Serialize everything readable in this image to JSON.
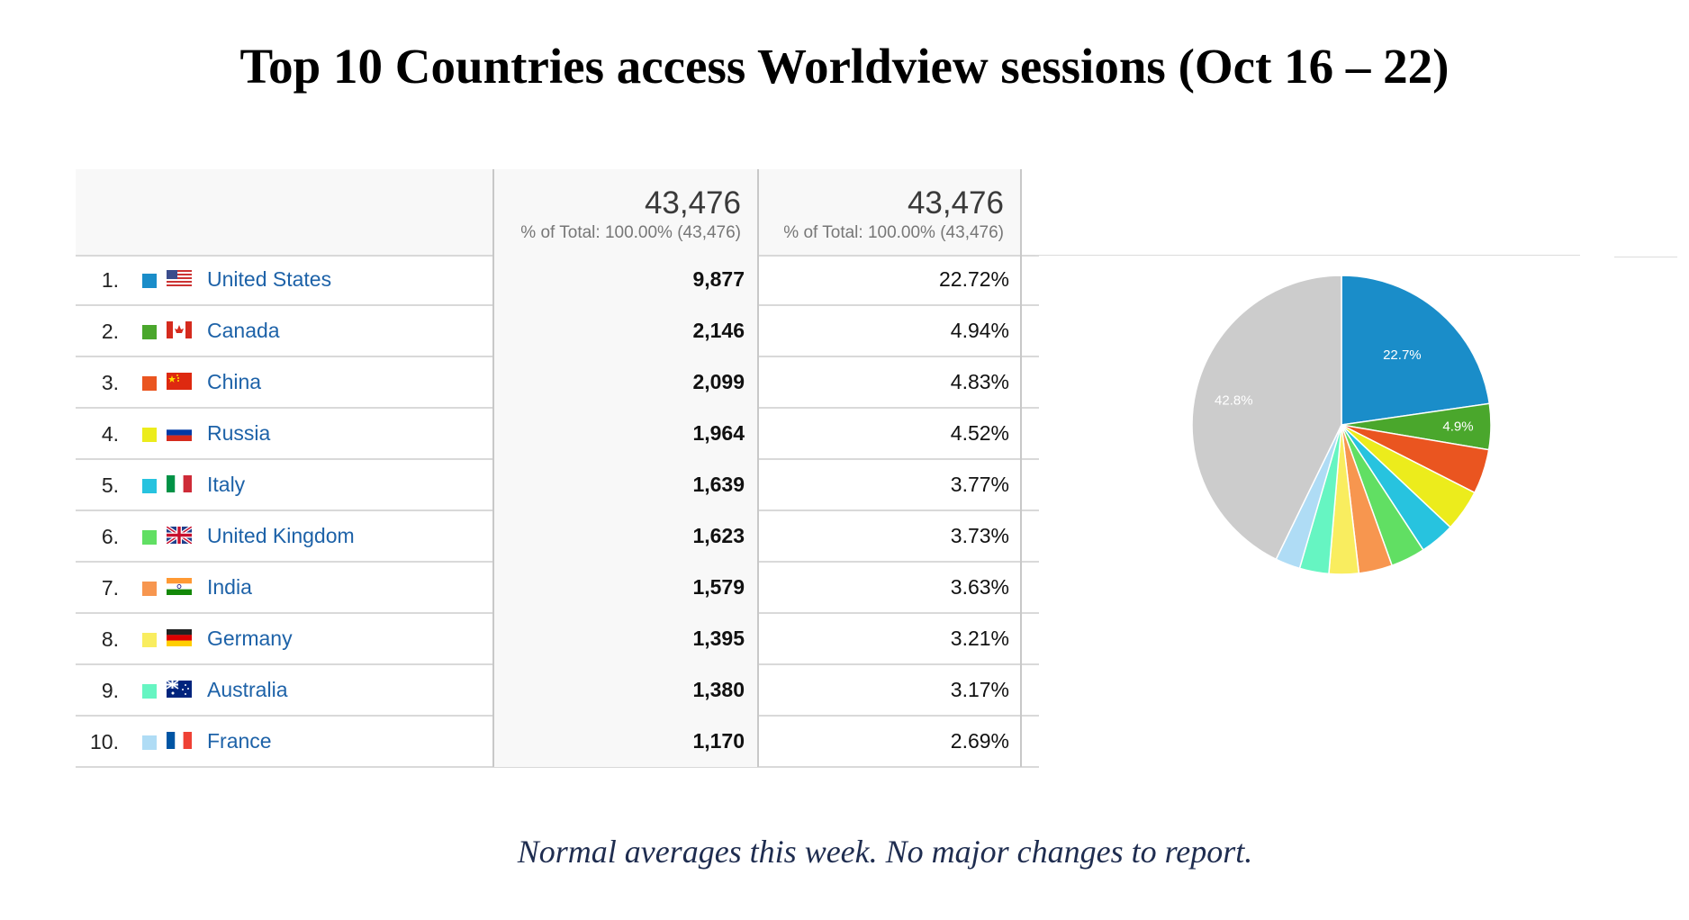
{
  "title": "Top 10 Countries access Worldview sessions (Oct 16 – 22)",
  "footer_note": "Normal averages this week.  No major changes to report.",
  "table": {
    "columns": [
      {
        "total": "43,476",
        "sub": "% of Total: 100.00% (43,476)"
      },
      {
        "total": "43,476",
        "sub": "% of Total: 100.00% (43,476)"
      }
    ],
    "rows": [
      {
        "rank": "1.",
        "country": "United States",
        "sessions": "9,877",
        "percent": "22.72%",
        "color": "#1a8dc9",
        "flag": "us-flag-icon"
      },
      {
        "rank": "2.",
        "country": "Canada",
        "sessions": "2,146",
        "percent": "4.94%",
        "color": "#4aa72c",
        "flag": "canada-flag-icon"
      },
      {
        "rank": "3.",
        "country": "China",
        "sessions": "2,099",
        "percent": "4.83%",
        "color": "#ea5520",
        "flag": "china-flag-icon"
      },
      {
        "rank": "4.",
        "country": "Russia",
        "sessions": "1,964",
        "percent": "4.52%",
        "color": "#ecec1c",
        "flag": "russia-flag-icon"
      },
      {
        "rank": "5.",
        "country": "Italy",
        "sessions": "1,639",
        "percent": "3.77%",
        "color": "#27c3df",
        "flag": "italy-flag-icon"
      },
      {
        "rank": "6.",
        "country": "United Kingdom",
        "sessions": "1,623",
        "percent": "3.73%",
        "color": "#61df63",
        "flag": "uk-flag-icon"
      },
      {
        "rank": "7.",
        "country": "India",
        "sessions": "1,579",
        "percent": "3.63%",
        "color": "#f7964f",
        "flag": "india-flag-icon"
      },
      {
        "rank": "8.",
        "country": "Germany",
        "sessions": "1,395",
        "percent": "3.21%",
        "color": "#f9ed5f",
        "flag": "germany-flag-icon"
      },
      {
        "rank": "9.",
        "country": "Australia",
        "sessions": "1,380",
        "percent": "3.17%",
        "color": "#66f5c2",
        "flag": "australia-flag-icon"
      },
      {
        "rank": "10.",
        "country": "France",
        "sessions": "1,170",
        "percent": "2.69%",
        "color": "#afdcf5",
        "flag": "france-flag-icon"
      }
    ]
  },
  "chart_data": {
    "type": "pie",
    "categories": [
      "United States",
      "Canada",
      "China",
      "Russia",
      "Italy",
      "United Kingdom",
      "India",
      "Germany",
      "Australia",
      "France",
      ""
    ],
    "values": [
      22.72,
      4.94,
      4.83,
      4.52,
      3.77,
      3.73,
      3.63,
      3.21,
      3.17,
      2.69,
      42.79
    ],
    "colors": [
      "#1a8dc9",
      "#4aa72c",
      "#ea5520",
      "#ecec1c",
      "#27c3df",
      "#61df63",
      "#f7964f",
      "#f9ed5f",
      "#66f5c2",
      "#afdcf5",
      "#cccccc"
    ],
    "data_labels": [
      "22.7%",
      "4.9%",
      "",
      "",
      "",
      "",
      "",
      "",
      "",
      "",
      "42.8%"
    ],
    "title": "",
    "legend": "none"
  }
}
